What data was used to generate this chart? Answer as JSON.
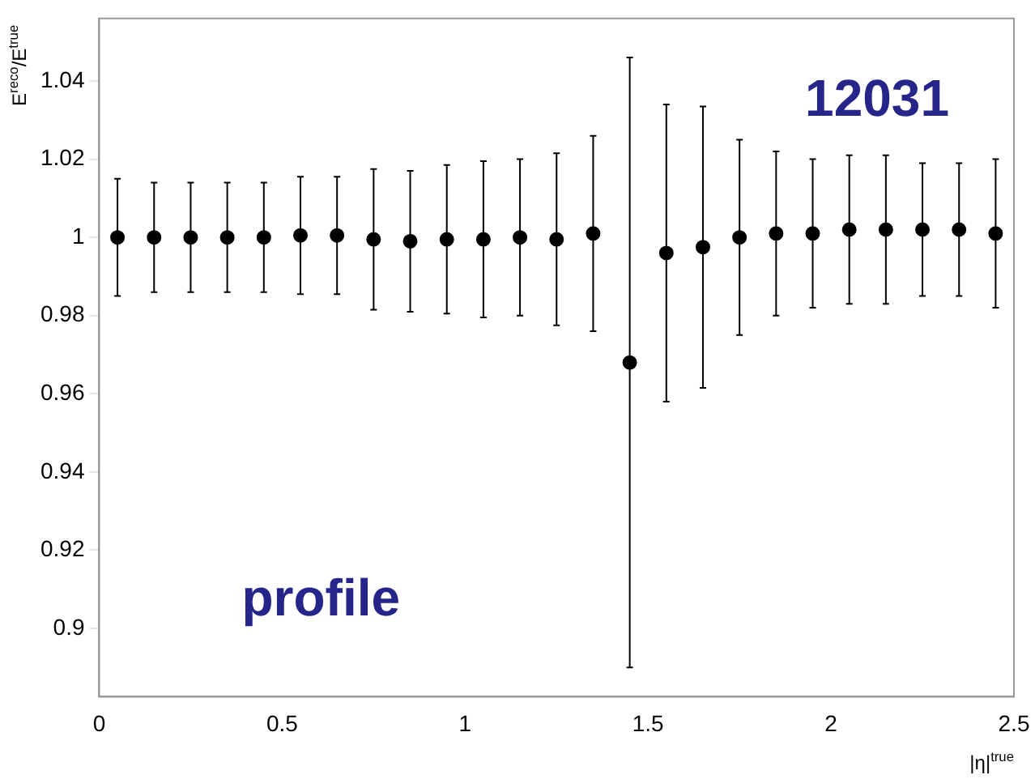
{
  "chart_data": {
    "type": "scatter",
    "xlabel": "|η|$^{true}$",
    "ylabel": "E$^{reco}$/E$^{true}$",
    "x": [
      0.05,
      0.15,
      0.25,
      0.35,
      0.45,
      0.55,
      0.65,
      0.75,
      0.85,
      0.95,
      1.05,
      1.15,
      1.25,
      1.35,
      1.45,
      1.55,
      1.65,
      1.75,
      1.85,
      1.95,
      2.05,
      2.15,
      2.25,
      2.35,
      2.45
    ],
    "series": [
      {
        "color": "#000000",
        "values": [
          1.0,
          1.0,
          1.0,
          1.0,
          1.0,
          1.0005,
          1.0005,
          0.9995,
          0.999,
          0.9995,
          0.9995,
          1.0,
          0.9995,
          1.001,
          0.968,
          0.996,
          0.9975,
          1.0,
          1.001,
          1.001,
          1.002,
          1.002,
          1.002,
          1.002,
          1.001
        ],
        "errors": [
          0.015,
          0.014,
          0.014,
          0.014,
          0.014,
          0.015,
          0.015,
          0.018,
          0.018,
          0.019,
          0.02,
          0.02,
          0.022,
          0.025,
          0.078,
          0.038,
          0.036,
          0.025,
          0.021,
          0.019,
          0.019,
          0.019,
          0.017,
          0.017,
          0.019
        ]
      }
    ],
    "xlim": [
      0,
      2.5
    ],
    "xticks": [
      0,
      0.5,
      1,
      1.5,
      2,
      2.5
    ],
    "ylim": [
      0.8825,
      1.056
    ],
    "yticks": [
      0.9,
      0.92,
      0.94,
      0.96,
      0.98,
      1,
      1.02,
      1.04
    ],
    "marker": "circle",
    "grid": false,
    "legend": false,
    "annotations": [
      "12031",
      "profile"
    ]
  }
}
